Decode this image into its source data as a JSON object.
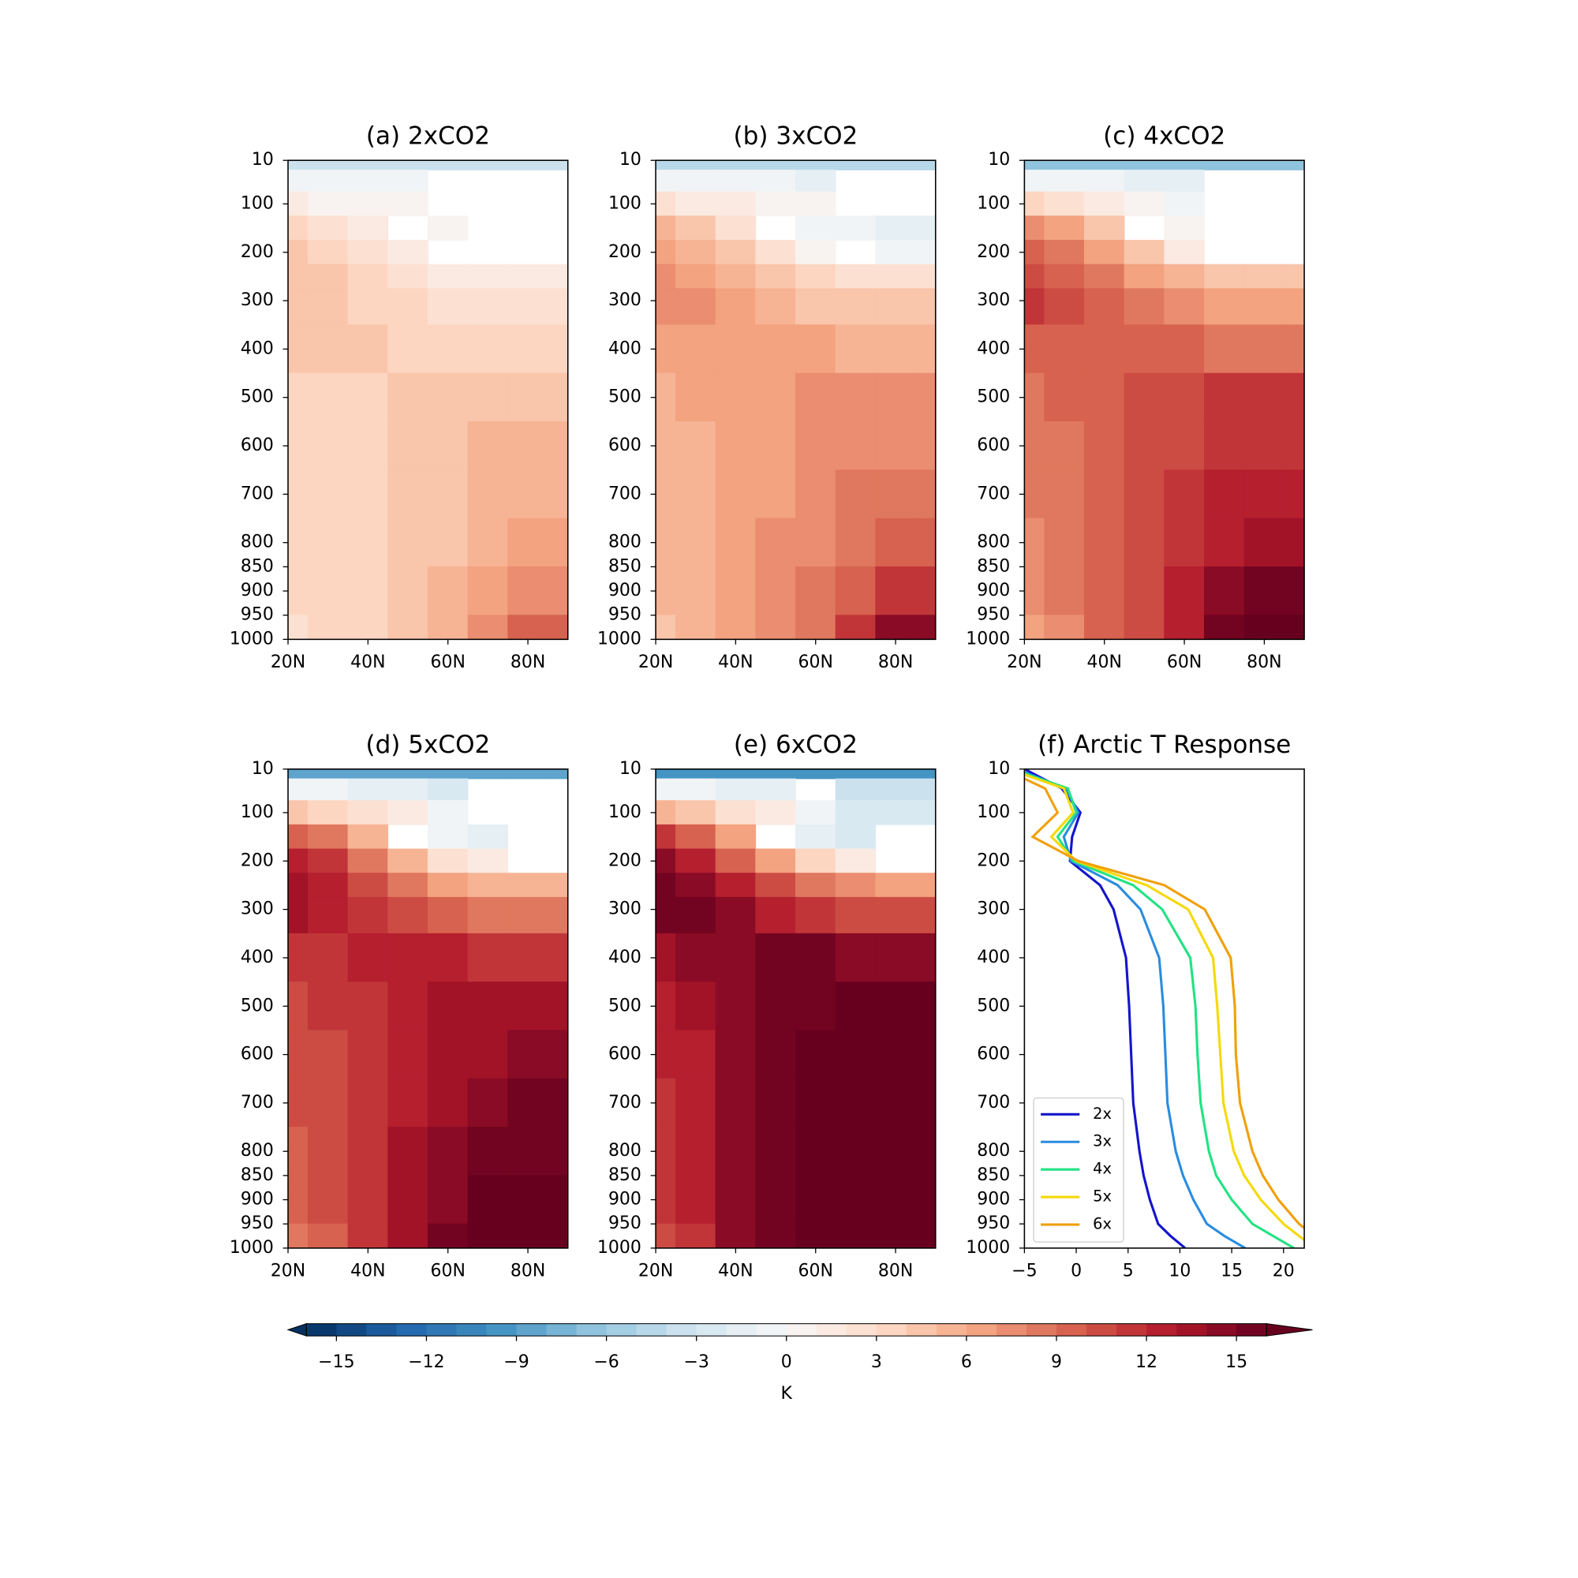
{
  "chart_data": [
    {
      "type": "contour",
      "title": "(a) 2xCO2",
      "x": [
        20,
        30,
        40,
        50,
        60,
        70,
        80,
        90
      ],
      "y": [
        10,
        50,
        100,
        150,
        200,
        250,
        300,
        400,
        500,
        600,
        700,
        800,
        900,
        1000
      ],
      "xlim": [
        20,
        90
      ],
      "ylim": [
        10,
        1000
      ],
      "y_inverted": true,
      "xticks": [
        {
          "value": 20,
          "label": "20N"
        },
        {
          "value": 40,
          "label": "40N"
        },
        {
          "value": 60,
          "label": "60N"
        },
        {
          "value": 80,
          "label": "80N"
        }
      ],
      "yticks": [
        10,
        100,
        200,
        300,
        400,
        500,
        600,
        700,
        800,
        850,
        900,
        950,
        1000
      ],
      "values": [
        [
          -4,
          -4,
          -4,
          -4,
          -4,
          -4,
          -4,
          -4
        ],
        [
          -1,
          -1,
          -1,
          -1,
          null,
          null,
          null,
          null
        ],
        [
          1,
          0.5,
          0.5,
          0,
          null,
          null,
          null,
          null
        ],
        [
          3,
          2,
          1,
          null,
          0,
          null,
          null,
          null
        ],
        [
          4,
          3,
          2,
          1,
          null,
          null,
          null,
          null
        ],
        [
          4.5,
          4,
          3,
          2,
          1.5,
          1,
          1,
          1
        ],
        [
          4.5,
          4,
          3.5,
          3,
          2.5,
          2,
          2,
          2
        ],
        [
          4,
          4,
          4,
          3.5,
          3.5,
          3,
          3,
          3
        ],
        [
          3.5,
          3.5,
          3.5,
          4,
          4,
          4.5,
          4.5,
          4.5
        ],
        [
          3.5,
          3.5,
          3.5,
          4,
          4.5,
          5,
          5,
          5
        ],
        [
          3.5,
          3.5,
          3.5,
          4,
          4.5,
          5,
          5.5,
          5.5
        ],
        [
          3.5,
          3.5,
          3.5,
          4,
          4.5,
          5.5,
          6,
          6
        ],
        [
          3,
          3.5,
          3.5,
          4,
          5,
          6,
          7,
          7.5
        ],
        [
          2.5,
          3,
          3.5,
          4,
          5,
          7,
          9,
          9.5
        ]
      ]
    },
    {
      "type": "contour",
      "title": "(b) 3xCO2",
      "x": [
        20,
        30,
        40,
        50,
        60,
        70,
        80,
        90
      ],
      "y": [
        10,
        50,
        100,
        150,
        200,
        250,
        300,
        400,
        500,
        600,
        700,
        800,
        900,
        1000
      ],
      "xlim": [
        20,
        90
      ],
      "ylim": [
        10,
        1000
      ],
      "y_inverted": true,
      "xticks": [
        {
          "value": 20,
          "label": "20N"
        },
        {
          "value": 40,
          "label": "40N"
        },
        {
          "value": 60,
          "label": "60N"
        },
        {
          "value": 80,
          "label": "80N"
        }
      ],
      "yticks": [
        10,
        100,
        200,
        300,
        400,
        500,
        600,
        700,
        800,
        850,
        900,
        950,
        1000
      ],
      "values": [
        [
          -5,
          -5,
          -5,
          -5,
          -5,
          -5,
          -5,
          -5
        ],
        [
          -1,
          -1,
          -1,
          -1,
          -1.5,
          null,
          null,
          null
        ],
        [
          2,
          1.5,
          1,
          0.5,
          0,
          null,
          null,
          null
        ],
        [
          5,
          4,
          2,
          null,
          -0.5,
          -1,
          -1.5,
          -1.5
        ],
        [
          6,
          5,
          4,
          2,
          0.5,
          null,
          -0.5,
          -0.5
        ],
        [
          7,
          6.5,
          5,
          4,
          3,
          2,
          2,
          2
        ],
        [
          7.5,
          7,
          6,
          5,
          4.5,
          4,
          4,
          4
        ],
        [
          6.5,
          6.5,
          6.5,
          6.5,
          6,
          5.5,
          5.5,
          5.5
        ],
        [
          5.5,
          6,
          6.5,
          6.5,
          7,
          7,
          7,
          7
        ],
        [
          5.5,
          5.5,
          6,
          6.5,
          7,
          7.5,
          7.5,
          7.5
        ],
        [
          5.5,
          5.5,
          6,
          6.5,
          7,
          8,
          8,
          8
        ],
        [
          5,
          5.5,
          6,
          7,
          7.5,
          8.5,
          9,
          9
        ],
        [
          5,
          5.5,
          6,
          7,
          8,
          9.5,
          11,
          11
        ],
        [
          4.5,
          5,
          6,
          7,
          8,
          11,
          14,
          14
        ]
      ]
    },
    {
      "type": "contour",
      "title": "(c) 4xCO2",
      "x": [
        20,
        30,
        40,
        50,
        60,
        70,
        80,
        90
      ],
      "y": [
        10,
        50,
        100,
        150,
        200,
        250,
        300,
        400,
        500,
        600,
        700,
        800,
        900,
        1000
      ],
      "xlim": [
        20,
        90
      ],
      "ylim": [
        10,
        1000
      ],
      "y_inverted": true,
      "xticks": [
        {
          "value": 20,
          "label": "20N"
        },
        {
          "value": 40,
          "label": "40N"
        },
        {
          "value": 60,
          "label": "60N"
        },
        {
          "value": 80,
          "label": "80N"
        }
      ],
      "yticks": [
        10,
        100,
        200,
        300,
        400,
        500,
        600,
        700,
        800,
        850,
        900,
        950,
        1000
      ],
      "values": [
        [
          -7,
          -7,
          -7,
          -7,
          -7,
          -7,
          -7,
          -7
        ],
        [
          -1,
          -1,
          -1,
          -1.5,
          -2,
          null,
          null,
          null
        ],
        [
          3,
          2,
          1.5,
          0.5,
          -0.5,
          null,
          null,
          null
        ],
        [
          7,
          6,
          4,
          null,
          0,
          null,
          null,
          null
        ],
        [
          9,
          8,
          6,
          4,
          1,
          null,
          null,
          null
        ],
        [
          10,
          9,
          8,
          6,
          5,
          4,
          4,
          4
        ],
        [
          11,
          10,
          9,
          8,
          7,
          6,
          6,
          6
        ],
        [
          9.5,
          9.5,
          9.5,
          9.5,
          9,
          8.5,
          8.5,
          8.5
        ],
        [
          8,
          9,
          9.5,
          10,
          10.5,
          11,
          11,
          11
        ],
        [
          8,
          8.5,
          9,
          10,
          10.5,
          11,
          11.5,
          11.5
        ],
        [
          8,
          8,
          9,
          10,
          11,
          12,
          12,
          12
        ],
        [
          7.5,
          8,
          9,
          10,
          11,
          12.5,
          13,
          13
        ],
        [
          7,
          8,
          9,
          10.5,
          12,
          14,
          15,
          15
        ],
        [
          6.5,
          7,
          9,
          10.5,
          12,
          15,
          16.5,
          16.5
        ]
      ]
    },
    {
      "type": "contour",
      "title": "(d) 5xCO2",
      "x": [
        20,
        30,
        40,
        50,
        60,
        70,
        80,
        90
      ],
      "y": [
        10,
        50,
        100,
        150,
        200,
        250,
        300,
        400,
        500,
        600,
        700,
        800,
        900,
        1000
      ],
      "xlim": [
        20,
        90
      ],
      "ylim": [
        10,
        1000
      ],
      "y_inverted": true,
      "xticks": [
        {
          "value": 20,
          "label": "20N"
        },
        {
          "value": 40,
          "label": "40N"
        },
        {
          "value": 60,
          "label": "60N"
        },
        {
          "value": 80,
          "label": "80N"
        }
      ],
      "yticks": [
        10,
        100,
        200,
        300,
        400,
        500,
        600,
        700,
        800,
        850,
        900,
        950,
        1000
      ],
      "values": [
        [
          -9,
          -9,
          -9,
          -9,
          -9,
          -9,
          -9,
          -9
        ],
        [
          -1,
          -1,
          -1.5,
          -2,
          -2.5,
          null,
          null,
          null
        ],
        [
          4,
          3,
          2,
          1,
          -1,
          null,
          null,
          null
        ],
        [
          9,
          8,
          5,
          null,
          -1,
          -2,
          null,
          null
        ],
        [
          12,
          11,
          8,
          5,
          2,
          1,
          null,
          null
        ],
        [
          13,
          12,
          10,
          8,
          6,
          5,
          5,
          5
        ],
        [
          13,
          12.5,
          11.5,
          10.5,
          9,
          8,
          8,
          8
        ],
        [
          11,
          11.5,
          12,
          12,
          12,
          11.5,
          11.5,
          11.5
        ],
        [
          10,
          11,
          11.5,
          12,
          13,
          13,
          13,
          13
        ],
        [
          10,
          10.5,
          11.5,
          12,
          13,
          13.5,
          14,
          14
        ],
        [
          10,
          10.5,
          11.5,
          12.5,
          13.5,
          14.5,
          15,
          15
        ],
        [
          9.5,
          10.5,
          11.5,
          13,
          14,
          15,
          15.5,
          15.5
        ],
        [
          9,
          10,
          11.5,
          13,
          14.5,
          16,
          16,
          16
        ],
        [
          8,
          9.5,
          11.5,
          13,
          15,
          16,
          16,
          16
        ]
      ]
    },
    {
      "type": "contour",
      "title": "(e) 6xCO2",
      "x": [
        20,
        30,
        40,
        50,
        60,
        70,
        80,
        90
      ],
      "y": [
        10,
        50,
        100,
        150,
        200,
        250,
        300,
        400,
        500,
        600,
        700,
        800,
        900,
        1000
      ],
      "xlim": [
        20,
        90
      ],
      "ylim": [
        10,
        1000
      ],
      "y_inverted": true,
      "xticks": [
        {
          "value": 20,
          "label": "20N"
        },
        {
          "value": 40,
          "label": "40N"
        },
        {
          "value": 60,
          "label": "60N"
        },
        {
          "value": 80,
          "label": "80N"
        }
      ],
      "yticks": [
        10,
        100,
        200,
        300,
        400,
        500,
        600,
        700,
        800,
        850,
        900,
        950,
        1000
      ],
      "values": [
        [
          -10,
          -10,
          -10,
          -10,
          -10,
          -10,
          -10,
          -10
        ],
        [
          -1,
          -1,
          -1.5,
          -2,
          null,
          -3.5,
          -4,
          -4
        ],
        [
          5,
          4,
          2.5,
          1,
          -1,
          -3,
          -3,
          -3
        ],
        [
          11,
          9,
          6,
          null,
          -2,
          -3,
          null,
          null
        ],
        [
          14,
          12,
          9,
          6,
          3,
          1,
          null,
          null
        ],
        [
          15,
          14,
          12,
          10,
          8,
          7,
          6,
          6
        ],
        [
          15.5,
          15,
          14,
          12.5,
          11,
          10,
          10,
          10
        ],
        [
          13,
          14,
          14.5,
          15,
          15,
          14.5,
          14.5,
          14.5
        ],
        [
          12,
          13,
          14,
          15,
          15.5,
          16,
          16,
          16
        ],
        [
          12,
          12.5,
          14,
          15,
          16,
          16,
          16,
          16
        ],
        [
          11.5,
          12.5,
          14,
          15,
          16,
          16,
          16,
          16
        ],
        [
          11,
          12,
          14,
          15,
          16,
          16,
          16,
          16
        ],
        [
          11,
          12,
          14,
          15,
          16,
          16,
          16,
          16
        ],
        [
          10,
          11.5,
          14,
          15,
          16,
          16,
          16,
          16
        ]
      ]
    },
    {
      "type": "line",
      "title": "(f) Arctic T Response",
      "y": [
        10,
        50,
        100,
        150,
        200,
        250,
        300,
        400,
        500,
        600,
        700,
        800,
        850,
        900,
        950,
        975,
        1000
      ],
      "xlim": [
        -5,
        22
      ],
      "ylim": [
        10,
        1000
      ],
      "y_inverted": true,
      "xticks": [
        {
          "value": -5,
          "label": "−5"
        },
        0,
        5,
        10,
        15,
        20
      ],
      "yticks": [
        10,
        100,
        200,
        300,
        400,
        500,
        600,
        700,
        800,
        850,
        900,
        950,
        1000
      ],
      "legend": "lower left",
      "series": [
        {
          "name": "2x",
          "color": "#1414cc",
          "values": [
            -5,
            -1.4,
            0.4,
            -0.4,
            -0.6,
            2.3,
            3.6,
            4.8,
            5.1,
            5.3,
            5.5,
            6.1,
            6.5,
            7.1,
            7.9,
            9.1,
            10.5
          ]
        },
        {
          "name": "3x",
          "color": "#2a8ce0",
          "values": [
            -5.8,
            -1,
            0.2,
            -1.2,
            -0.5,
            4,
            6.2,
            8,
            8.4,
            8.6,
            8.8,
            9.6,
            10.3,
            11.3,
            12.6,
            14.3,
            16.3
          ]
        },
        {
          "name": "4x",
          "color": "#22e283",
          "values": [
            -6.2,
            -0.8,
            0,
            -1.8,
            -0.3,
            5.5,
            8.3,
            11,
            11.5,
            11.7,
            12,
            12.8,
            13.5,
            15,
            17,
            19,
            21
          ]
        },
        {
          "name": "5x",
          "color": "#f5d90a",
          "values": [
            -6.5,
            -1.2,
            -0.3,
            -2.4,
            0,
            6.8,
            10.8,
            13.2,
            13.6,
            13.9,
            14.2,
            15.2,
            16.2,
            17.8,
            20,
            21.5,
            23
          ]
        },
        {
          "name": "6x",
          "color": "#f0a00a",
          "values": [
            -7,
            -3,
            -1.8,
            -4.2,
            0.2,
            8.5,
            12.4,
            14.9,
            15.3,
            15.4,
            15.8,
            17,
            18,
            19.5,
            21.5,
            23,
            25
          ]
        }
      ]
    },
    {
      "type": "colorbar",
      "xlim": [
        -16,
        16
      ],
      "step": 1,
      "extend": "both",
      "xlabel": "K",
      "xticks": [
        {
          "value": -15,
          "label": "−15"
        },
        {
          "value": -12,
          "label": "−12"
        },
        {
          "value": -9,
          "label": "−9"
        },
        {
          "value": -6,
          "label": "−6"
        },
        {
          "value": -3,
          "label": "−3"
        },
        0,
        3,
        6,
        9,
        12,
        15
      ]
    }
  ]
}
